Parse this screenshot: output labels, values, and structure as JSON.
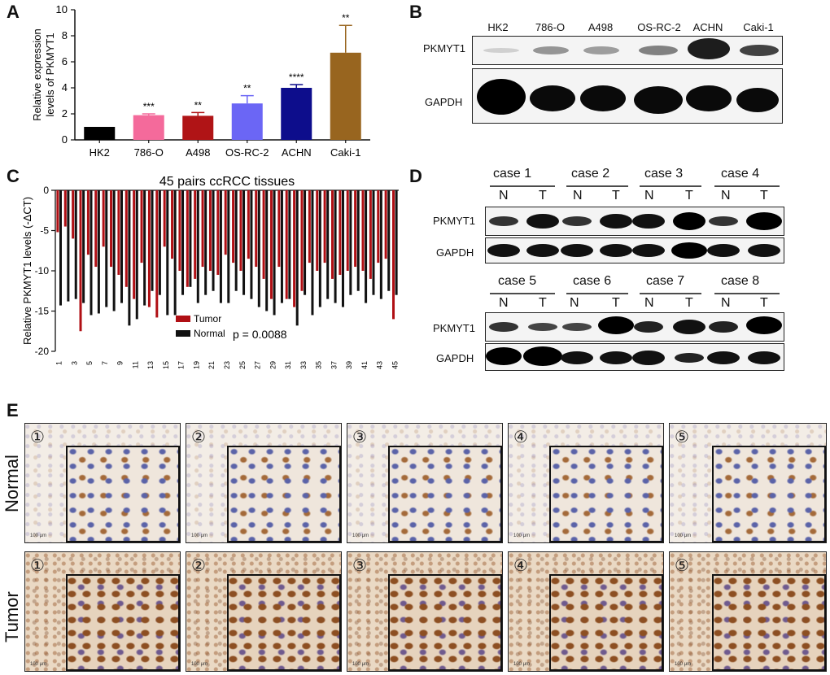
{
  "panels": {
    "A": {
      "letter": "A"
    },
    "B": {
      "letter": "B"
    },
    "C": {
      "letter": "C"
    },
    "D": {
      "letter": "D"
    },
    "E": {
      "letter": "E"
    }
  },
  "chart_data": [
    {
      "type": "bar",
      "panel": "A",
      "categories": [
        "HK2",
        "786-O",
        "A498",
        "OS-RC-2",
        "ACHN",
        "Caki-1"
      ],
      "values": [
        1.0,
        1.9,
        1.85,
        2.8,
        4.0,
        6.7
      ],
      "errors": [
        0.0,
        0.1,
        0.25,
        0.6,
        0.25,
        2.1
      ],
      "significance": [
        "",
        "***",
        "**",
        "**",
        "****",
        "**"
      ],
      "colors": [
        "#000000",
        "#f46a9b",
        "#b01416",
        "#6b66f5",
        "#0d0d8c",
        "#98651f"
      ],
      "ylabel": "Relative expression levels of PKMYT1",
      "ylim": [
        0,
        10
      ],
      "yticks": [
        0,
        2,
        4,
        6,
        8,
        10
      ]
    },
    {
      "type": "bar",
      "panel": "C",
      "title": "45 pairs ccRCC tissues",
      "ylabel": "Relative PKMYT1 levels (-ΔCT)",
      "ylim": [
        -20,
        0
      ],
      "yticks": [
        0,
        -5,
        -10,
        -15,
        -20
      ],
      "x": [
        1,
        2,
        3,
        4,
        5,
        6,
        7,
        8,
        9,
        10,
        11,
        12,
        13,
        14,
        15,
        16,
        17,
        18,
        19,
        20,
        21,
        22,
        23,
        24,
        25,
        26,
        27,
        28,
        29,
        30,
        31,
        32,
        33,
        34,
        35,
        36,
        37,
        38,
        39,
        40,
        41,
        42,
        43,
        44,
        45
      ],
      "xtick_labels": [
        "1",
        "3",
        "5",
        "7",
        "9",
        "11",
        "13",
        "15",
        "17",
        "19",
        "21",
        "23",
        "25",
        "27",
        "29",
        "31",
        "33",
        "35",
        "37",
        "39",
        "41",
        "43",
        "45"
      ],
      "series": [
        {
          "name": "Tumor",
          "color": "#b00f14",
          "values": [
            -5.2,
            -4.5,
            -6.0,
            -17.5,
            -8.0,
            -9.5,
            -7.0,
            -9.5,
            -10.5,
            -12.0,
            -13.5,
            -9.0,
            -14.5,
            -15.8,
            -7.0,
            -8.5,
            -10.0,
            -12.0,
            -11.0,
            -9.5,
            -10.0,
            -10.5,
            -8.0,
            -9.0,
            -10.0,
            -8.5,
            -9.5,
            -11.0,
            -13.5,
            -9.5,
            -13.5,
            -14.5,
            -12.5,
            -9.0,
            -10.0,
            -9.0,
            -11.0,
            -10.5,
            -10.0,
            -9.5,
            -10.0,
            -11.0,
            -9.0,
            -8.5,
            -16.0
          ]
        },
        {
          "name": "Normal",
          "color": "#111111",
          "values": [
            -14.3,
            -13.8,
            -13.5,
            -14.0,
            -15.5,
            -15.3,
            -14.5,
            -15.0,
            -14.0,
            -16.8,
            -16.0,
            -14.3,
            -12.5,
            -13.0,
            -15.5,
            -15.5,
            -13.0,
            -12.0,
            -14.0,
            -13.0,
            -12.5,
            -14.0,
            -14.0,
            -12.5,
            -13.0,
            -13.5,
            -14.5,
            -15.0,
            -15.5,
            -14.0,
            -13.5,
            -16.8,
            -13.0,
            -15.5,
            -14.5,
            -13.5,
            -14.0,
            -14.5,
            -13.0,
            -12.5,
            -14.0,
            -13.0,
            -13.5,
            -12.5,
            -13.0
          ]
        }
      ],
      "legend": [
        {
          "name": "Tumor",
          "color": "#b00f14"
        },
        {
          "name": "Normal",
          "color": "#111111"
        }
      ],
      "annotation": "p = 0.0088"
    }
  ],
  "panelB": {
    "lanes": [
      "HK2",
      "786-O",
      "A498",
      "OS-RC-2",
      "ACHN",
      "Caki-1"
    ],
    "rows": [
      "PKMYT1",
      "GAPDH"
    ]
  },
  "panelD": {
    "top_cases": [
      "case 1",
      "case 2",
      "case 3",
      "case 4"
    ],
    "bottom_cases": [
      "case 5",
      "case 6",
      "case 7",
      "case 8"
    ],
    "lane_n": "N",
    "lane_t": "T",
    "rows": [
      "PKMYT1",
      "GAPDH"
    ]
  },
  "panelE": {
    "row_labels": [
      "Normal",
      "Tumor"
    ],
    "numbers": [
      "①",
      "②",
      "③",
      "④",
      "⑤"
    ],
    "scale_main": "100 μm",
    "scale_inset": "50 μm"
  }
}
